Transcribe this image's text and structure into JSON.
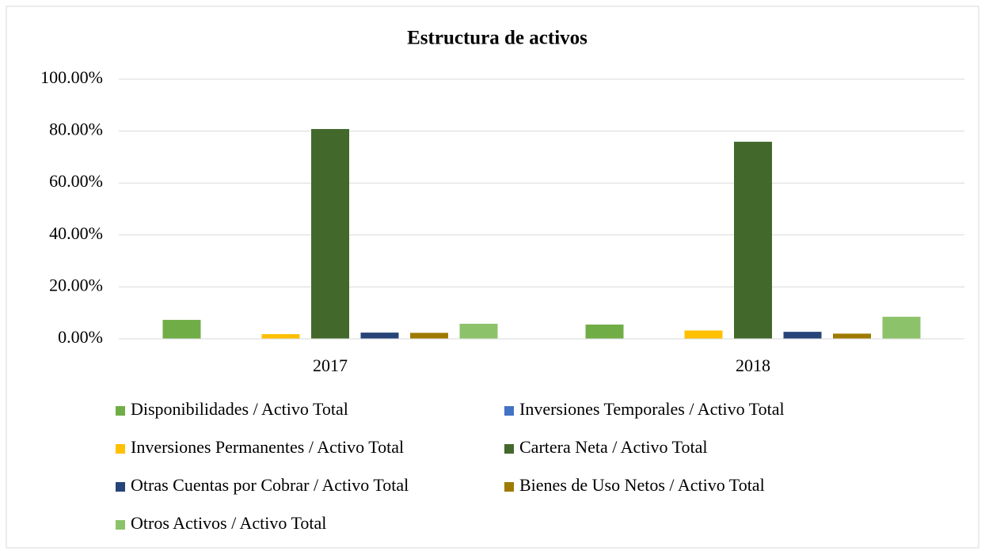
{
  "chart_data": {
    "type": "bar",
    "title": "Estructura de activos",
    "categories": [
      "2017",
      "2018"
    ],
    "series": [
      {
        "name": "Disponibilidades / Activo Total",
        "color": "#70ad47",
        "values": [
          7.3,
          5.5
        ]
      },
      {
        "name": "Inversiones Temporales / Activo Total",
        "color": "#4472c4",
        "values": [
          0,
          0
        ]
      },
      {
        "name": "Inversiones Permanentes / Activo Total",
        "color": "#ffc000",
        "values": [
          1.8,
          3.2
        ]
      },
      {
        "name": "Cartera Neta / Activo Total",
        "color": "#43682b",
        "values": [
          80.8,
          75.9
        ]
      },
      {
        "name": "Otras Cuentas por Cobrar / Activo Total",
        "color": "#264478",
        "values": [
          2.4,
          2.7
        ]
      },
      {
        "name": "Bienes de Uso Netos / Activo Total",
        "color": "#9e7a00",
        "values": [
          2.3,
          2.0
        ]
      },
      {
        "name": "Otros Activos / Activo Total",
        "color": "#8cc36a",
        "values": [
          5.8,
          8.5
        ]
      }
    ],
    "ylim": [
      0,
      100
    ],
    "yticks": [
      {
        "value": 0,
        "label": "0.00%"
      },
      {
        "value": 20,
        "label": "20.00%"
      },
      {
        "value": 40,
        "label": "40.00%"
      },
      {
        "value": 60,
        "label": "60.00%"
      },
      {
        "value": 80,
        "label": "80.00%"
      },
      {
        "value": 100,
        "label": "100.00%"
      }
    ],
    "grid": true,
    "legend": "bottom"
  }
}
